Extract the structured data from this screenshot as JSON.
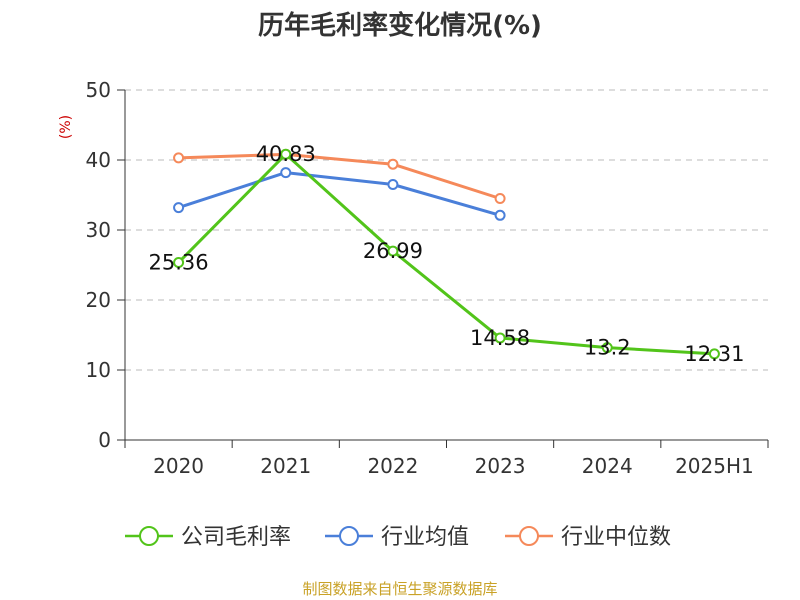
{
  "title": "历年毛利率变化情况(%)",
  "source_note": "制图数据来自恒生聚源数据库",
  "chart_data": {
    "type": "line",
    "title": "历年毛利率变化情况(%)",
    "ylabel": "(%)",
    "xlabel": "",
    "categories": [
      "2020",
      "2021",
      "2022",
      "2023",
      "2024",
      "2025H1"
    ],
    "ylim": [
      0,
      50
    ],
    "yticks": [
      0,
      10,
      20,
      30,
      40,
      50
    ],
    "grid": true,
    "legend_position": "bottom",
    "series": [
      {
        "name": "公司毛利率",
        "color": "#52c41a",
        "values": [
          25.36,
          40.83,
          26.99,
          14.58,
          13.2,
          12.31
        ],
        "labels": [
          "25.36",
          "40.83",
          "26.99",
          "14.58",
          "13.2",
          "12.31"
        ],
        "show_labels": true
      },
      {
        "name": "行业均值",
        "color": "#4a7fd9",
        "values": [
          33.2,
          38.2,
          36.5,
          32.1,
          null,
          null
        ],
        "show_labels": false
      },
      {
        "name": "行业中位数",
        "color": "#f5895a",
        "values": [
          40.3,
          40.8,
          39.4,
          34.5,
          null,
          null
        ],
        "show_labels": false
      }
    ]
  }
}
